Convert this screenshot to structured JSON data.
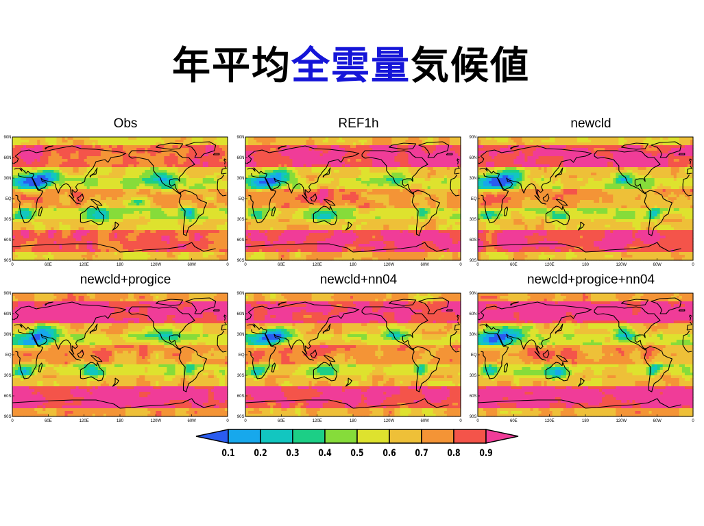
{
  "title": {
    "parts": [
      {
        "text": "年平均",
        "color": "#000000"
      },
      {
        "text": "全雲量",
        "color": "#1515d8"
      },
      {
        "text": "気候値",
        "color": "#000000"
      }
    ]
  },
  "panels": [
    {
      "title": "Obs",
      "variant": 0
    },
    {
      "title": "REF1h",
      "variant": 1
    },
    {
      "title": "newcld",
      "variant": 2
    },
    {
      "title": "newcld+progice",
      "variant": 3
    },
    {
      "title": "newcld+nn04",
      "variant": 4
    },
    {
      "title": "newcld+progice+nn04",
      "variant": 5
    }
  ],
  "lat_labels": [
    "90N",
    "60N",
    "30N",
    "EQ",
    "30S",
    "60S",
    "90S"
  ],
  "lon_labels": [
    "0",
    "60E",
    "120E",
    "180",
    "120W",
    "60W",
    "0"
  ],
  "colorbar": {
    "labels": [
      "0.1",
      "0.2",
      "0.3",
      "0.4",
      "0.5",
      "0.6",
      "0.7",
      "0.8",
      "0.9"
    ],
    "colors": [
      "#2a5cf0",
      "#17a8ec",
      "#12c6c0",
      "#1ccf86",
      "#86dc3a",
      "#dee22e",
      "#eec038",
      "#f49436",
      "#f4544a",
      "#f03c98"
    ]
  }
}
